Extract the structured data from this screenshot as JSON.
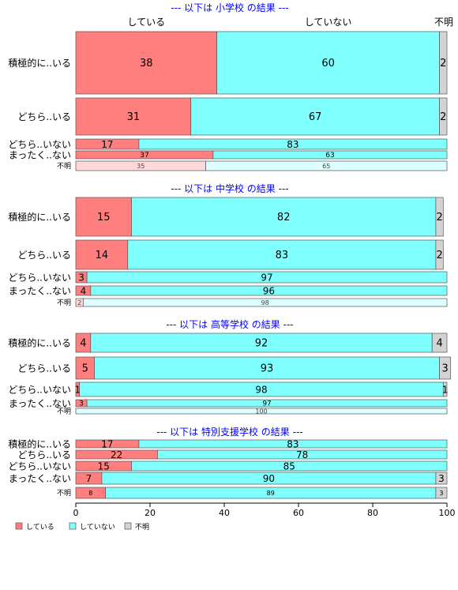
{
  "chart_data": {
    "type": "bar",
    "orientation": "horizontal-stacked",
    "column_headers": [
      "している",
      "していない",
      "不明"
    ],
    "xlim": [
      0,
      100
    ],
    "x_ticks": [
      "0",
      "20",
      "40",
      "60",
      "80",
      "100"
    ],
    "colors": {
      "yes": "#FF7F7F",
      "no": "#80FFFF",
      "unknown": "#D3D3D3",
      "yes_light": "#FFD9D9",
      "no_light": "#DDFFFF",
      "title": "#0000FF",
      "border": "#555555"
    },
    "legend": {
      "position": "bottom-left",
      "entries": [
        "している",
        "していない",
        "不明"
      ]
    },
    "panels": [
      {
        "title": "--- 以下は 小学校 の結果 ---",
        "rows": [
          {
            "label": "積極的に..いる",
            "values": [
              38,
              60,
              2
            ]
          },
          {
            "label": "どちら..いる",
            "values": [
              31,
              67,
              2
            ]
          },
          {
            "label": "どちら..いない",
            "values": [
              17,
              83,
              0
            ]
          },
          {
            "label": "まったく..ない",
            "values": [
              37,
              63,
              0
            ]
          },
          {
            "label": "不明",
            "values": [
              35,
              65,
              0
            ]
          }
        ]
      },
      {
        "title": "--- 以下は 中学校 の結果 ---",
        "rows": [
          {
            "label": "積極的に..いる",
            "values": [
              15,
              82,
              2
            ]
          },
          {
            "label": "どちら..いる",
            "values": [
              14,
              83,
              2
            ]
          },
          {
            "label": "どちら..いない",
            "values": [
              3,
              97,
              0
            ]
          },
          {
            "label": "まったく..ない",
            "values": [
              4,
              96,
              0
            ]
          },
          {
            "label": "不明",
            "values": [
              2,
              98,
              0
            ]
          }
        ]
      },
      {
        "title": "--- 以下は 高等学校 の結果 ---",
        "rows": [
          {
            "label": "積極的に..いる",
            "values": [
              4,
              92,
              4
            ]
          },
          {
            "label": "どちら..いる",
            "values": [
              5,
              93,
              3
            ]
          },
          {
            "label": "どちら..いない",
            "values": [
              1,
              98,
              1
            ]
          },
          {
            "label": "まったく..ない",
            "values": [
              3,
              97,
              0
            ]
          },
          {
            "label": "不明",
            "values": [
              0,
              100,
              0
            ]
          }
        ]
      },
      {
        "title": "--- 以下は 特別支援学校 の結果 ---",
        "rows": [
          {
            "label": "積極的に..いる",
            "values": [
              17,
              83,
              0
            ]
          },
          {
            "label": "どちら..いる",
            "values": [
              22,
              78,
              0
            ]
          },
          {
            "label": "どちら..いない",
            "values": [
              15,
              85,
              0
            ]
          },
          {
            "label": "まったく..ない",
            "values": [
              7,
              90,
              3
            ]
          },
          {
            "label": "不明",
            "values": [
              8,
              89,
              3
            ]
          }
        ]
      }
    ]
  }
}
